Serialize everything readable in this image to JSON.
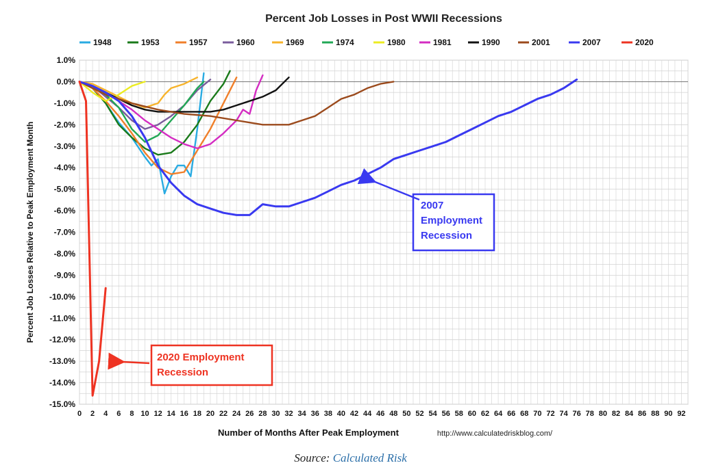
{
  "chart_data": {
    "type": "line",
    "title": "Percent Job Losses in Post WWII Recessions",
    "xlabel": "Number of Months After Peak Employment",
    "ylabel": "Percent Job Losses Relative to Peak Employment Month",
    "source_url": "http://www.calculatedriskblog.com/",
    "xlim": [
      0,
      93
    ],
    "ylim": [
      -15,
      1
    ],
    "x_ticks": [
      "0",
      "2",
      "4",
      "6",
      "8",
      "10",
      "12",
      "14",
      "16",
      "18",
      "20",
      "22",
      "24",
      "26",
      "28",
      "30",
      "32",
      "34",
      "36",
      "38",
      "40",
      "42",
      "44",
      "46",
      "48",
      "50",
      "52",
      "54",
      "56",
      "58",
      "60",
      "62",
      "64",
      "66",
      "68",
      "70",
      "72",
      "74",
      "76",
      "78",
      "80",
      "82",
      "84",
      "86",
      "88",
      "90",
      "92"
    ],
    "y_ticks": [
      "1.0%",
      "0.0%",
      "-1.0%",
      "-2.0%",
      "-3.0%",
      "-4.0%",
      "-5.0%",
      "-6.0%",
      "-7.0%",
      "-8.0%",
      "-9.0%",
      "-10.0%",
      "-11.0%",
      "-12.0%",
      "-13.0%",
      "-14.0%",
      "-15.0%"
    ],
    "grid": true,
    "legend_position": "top",
    "series": [
      {
        "name": "1948",
        "color": "#29abe2",
        "x": [
          0,
          2,
          4,
          6,
          8,
          10,
          11,
          12,
          13,
          14,
          15,
          16,
          17,
          18,
          19
        ],
        "y": [
          0,
          -0.3,
          -1,
          -1.9,
          -2.6,
          -3.5,
          -3.9,
          -3.6,
          -5.2,
          -4.4,
          -3.9,
          -3.9,
          -4.4,
          -2.2,
          0.4
        ]
      },
      {
        "name": "1953",
        "color": "#1a7a1a",
        "x": [
          0,
          2,
          4,
          6,
          8,
          10,
          12,
          14,
          16,
          18,
          20,
          22,
          23
        ],
        "y": [
          0,
          -0.3,
          -1,
          -2,
          -2.6,
          -3.1,
          -3.4,
          -3.3,
          -2.8,
          -2,
          -0.9,
          -0.1,
          0.5
        ]
      },
      {
        "name": "1957",
        "color": "#f07f2a",
        "x": [
          0,
          2,
          4,
          6,
          8,
          10,
          12,
          14,
          16,
          18,
          20,
          22,
          24
        ],
        "y": [
          0,
          -0.3,
          -0.9,
          -1.6,
          -2.4,
          -3.3,
          -4,
          -4.3,
          -4.2,
          -3.2,
          -2.2,
          -1,
          0.2
        ]
      },
      {
        "name": "1960",
        "color": "#7a5c9c",
        "x": [
          0,
          2,
          4,
          6,
          8,
          10,
          12,
          14,
          16,
          18,
          20
        ],
        "y": [
          0,
          -0.2,
          -0.7,
          -1.2,
          -1.8,
          -2.2,
          -2,
          -1.6,
          -1.1,
          -0.4,
          0.1
        ]
      },
      {
        "name": "1969",
        "color": "#f7b32b",
        "x": [
          0,
          2,
          4,
          6,
          8,
          10,
          12,
          13,
          14,
          16,
          18
        ],
        "y": [
          0,
          -0.1,
          -0.4,
          -0.7,
          -1,
          -1.2,
          -1,
          -0.6,
          -0.3,
          -0.1,
          0.2
        ]
      },
      {
        "name": "1974",
        "color": "#22a855",
        "x": [
          0,
          2,
          4,
          6,
          8,
          10,
          12,
          14,
          16,
          18,
          19
        ],
        "y": [
          0,
          -0.2,
          -0.6,
          -1.2,
          -2.2,
          -2.8,
          -2.5,
          -1.8,
          -1.1,
          -0.3,
          0
        ]
      },
      {
        "name": "1980",
        "color": "#ecec22",
        "x": [
          0,
          2,
          4,
          6,
          8,
          10
        ],
        "y": [
          0,
          -0.5,
          -0.9,
          -0.6,
          -0.2,
          0
        ]
      },
      {
        "name": "1981",
        "color": "#d42cc2",
        "x": [
          0,
          2,
          4,
          6,
          8,
          10,
          12,
          14,
          16,
          18,
          20,
          22,
          24,
          25,
          26,
          27,
          28
        ],
        "y": [
          0,
          -0.2,
          -0.5,
          -0.9,
          -1.3,
          -1.8,
          -2.2,
          -2.6,
          -2.9,
          -3.1,
          -2.9,
          -2.4,
          -1.8,
          -1.3,
          -1.5,
          -0.4,
          0.3
        ]
      },
      {
        "name": "1990",
        "color": "#111111",
        "x": [
          0,
          2,
          4,
          6,
          8,
          10,
          12,
          14,
          16,
          18,
          20,
          22,
          24,
          26,
          28,
          30,
          32
        ],
        "y": [
          0,
          -0.2,
          -0.5,
          -0.8,
          -1.1,
          -1.3,
          -1.4,
          -1.4,
          -1.4,
          -1.4,
          -1.4,
          -1.3,
          -1.1,
          -0.9,
          -0.7,
          -0.4,
          0.2
        ]
      },
      {
        "name": "2001",
        "color": "#9b4a1c",
        "x": [
          0,
          4,
          8,
          12,
          16,
          20,
          24,
          26,
          28,
          30,
          32,
          34,
          36,
          38,
          40,
          42,
          44,
          46,
          48
        ],
        "y": [
          0,
          -0.6,
          -1,
          -1.3,
          -1.5,
          -1.6,
          -1.8,
          -1.9,
          -2,
          -2,
          -2,
          -1.8,
          -1.6,
          -1.2,
          -0.8,
          -0.6,
          -0.3,
          -0.1,
          0
        ]
      },
      {
        "name": "2007",
        "color": "#3939f0",
        "x": [
          0,
          2,
          4,
          6,
          8,
          10,
          12,
          14,
          16,
          18,
          20,
          22,
          24,
          26,
          28,
          30,
          32,
          34,
          36,
          38,
          40,
          42,
          44,
          46,
          48,
          50,
          52,
          54,
          56,
          58,
          60,
          62,
          64,
          66,
          68,
          70,
          72,
          74,
          76
        ],
        "y": [
          0,
          -0.2,
          -0.5,
          -0.9,
          -1.6,
          -2.6,
          -3.9,
          -4.7,
          -5.3,
          -5.7,
          -5.9,
          -6.1,
          -6.2,
          -6.2,
          -5.7,
          -5.8,
          -5.8,
          -5.6,
          -5.4,
          -5.1,
          -4.8,
          -4.6,
          -4.3,
          -4.0,
          -3.6,
          -3.4,
          -3.2,
          -3.0,
          -2.8,
          -2.5,
          -2.2,
          -1.9,
          -1.6,
          -1.4,
          -1.1,
          -0.8,
          -0.6,
          -0.3,
          0.1
        ]
      },
      {
        "name": "2020",
        "color": "#ee3322",
        "x": [
          0,
          1,
          2,
          3,
          4
        ],
        "y": [
          0,
          -0.9,
          -14.6,
          -13.0,
          -9.6
        ]
      }
    ],
    "annotations": [
      {
        "text_lines": [
          "2007",
          "Employment",
          "Recession"
        ],
        "color": "#3939f0"
      },
      {
        "text_lines": [
          "2020 Employment",
          "Recession"
        ],
        "color": "#ee3322"
      }
    ]
  },
  "source": {
    "prefix": "Source:",
    "link_text": "Calculated Risk"
  }
}
